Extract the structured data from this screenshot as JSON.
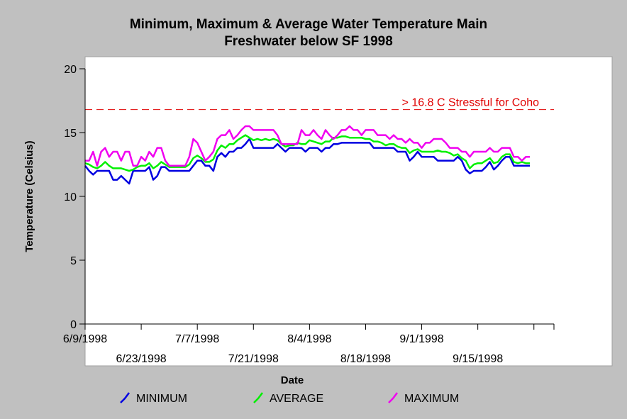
{
  "chart_data": {
    "type": "line",
    "title_line1": "Minimum, Maximum & Average Water Temperature Main",
    "title_line2": "Freshwater below SF 1998",
    "xlabel": "Date",
    "ylabel": "Temperature (Celsius)",
    "ylim": [
      0,
      20
    ],
    "yticks": [
      "0",
      "5",
      "10",
      "15",
      "20"
    ],
    "xlim": [
      0,
      117
    ],
    "x_tick_positions": [
      0,
      14,
      28,
      42,
      56,
      70,
      84,
      98,
      112
    ],
    "x_tick_labels_upper": [
      {
        "pos": 0,
        "label": "6/9/1998"
      },
      {
        "pos": 28,
        "label": "7/7/1998"
      },
      {
        "pos": 56,
        "label": "8/4/1998"
      },
      {
        "pos": 84,
        "label": "9/1/1998"
      }
    ],
    "x_tick_labels_lower": [
      {
        "pos": 14,
        "label": "6/23/1998"
      },
      {
        "pos": 42,
        "label": "7/21/1998"
      },
      {
        "pos": 70,
        "label": "8/18/1998"
      },
      {
        "pos": 98,
        "label": "9/15/1998"
      }
    ],
    "threshold": {
      "value": 16.8,
      "label": "> 16.8 C Stressful for Coho",
      "color": "#e00000"
    },
    "series": [
      {
        "name": "MINIMUM",
        "color": "#0000e0",
        "values": [
          12.4,
          12.0,
          11.7,
          12.0,
          12.0,
          12.0,
          12.0,
          11.3,
          11.3,
          11.6,
          11.3,
          11.0,
          12.0,
          12.0,
          12.0,
          12.0,
          12.3,
          11.3,
          11.6,
          12.3,
          12.3,
          12.0,
          12.0,
          12.0,
          12.0,
          12.0,
          12.0,
          12.4,
          12.8,
          12.8,
          12.4,
          12.4,
          12.0,
          13.1,
          13.4,
          13.1,
          13.5,
          13.5,
          13.8,
          13.8,
          14.1,
          14.5,
          13.8,
          13.8,
          13.8,
          13.8,
          13.8,
          13.8,
          14.1,
          13.8,
          13.5,
          13.8,
          13.8,
          13.8,
          13.8,
          13.5,
          13.8,
          13.8,
          13.8,
          13.5,
          13.8,
          13.8,
          14.1,
          14.1,
          14.2,
          14.2,
          14.2,
          14.2,
          14.2,
          14.2,
          14.2,
          14.2,
          13.8,
          13.8,
          13.8,
          13.8,
          13.8,
          13.8,
          13.5,
          13.5,
          13.5,
          12.8,
          13.1,
          13.5,
          13.1,
          13.1,
          13.1,
          13.1,
          12.8,
          12.8,
          12.8,
          12.8,
          12.8,
          13.1,
          12.8,
          12.1,
          11.8,
          12.0,
          12.0,
          12.0,
          12.3,
          12.7,
          12.1,
          12.4,
          12.8,
          13.1,
          13.1,
          12.4,
          12.4,
          12.4,
          12.4,
          12.4
        ]
      },
      {
        "name": "AVERAGE",
        "color": "#00f000",
        "values": [
          12.6,
          12.5,
          12.3,
          12.2,
          12.4,
          12.7,
          12.4,
          12.2,
          12.2,
          12.2,
          12.1,
          12.0,
          12.1,
          12.3,
          12.4,
          12.4,
          12.6,
          12.2,
          12.4,
          12.7,
          12.5,
          12.3,
          12.3,
          12.3,
          12.3,
          12.3,
          12.5,
          13.0,
          13.2,
          13.0,
          12.7,
          12.7,
          12.9,
          13.6,
          14.0,
          13.8,
          14.1,
          14.1,
          14.4,
          14.6,
          14.8,
          14.6,
          14.4,
          14.5,
          14.4,
          14.5,
          14.4,
          14.5,
          14.4,
          14.1,
          13.9,
          14.0,
          14.0,
          14.2,
          14.1,
          14.1,
          14.4,
          14.3,
          14.2,
          14.1,
          14.3,
          14.3,
          14.6,
          14.6,
          14.7,
          14.7,
          14.6,
          14.6,
          14.6,
          14.6,
          14.5,
          14.5,
          14.3,
          14.3,
          14.2,
          14.0,
          14.1,
          14.1,
          13.9,
          13.8,
          13.8,
          13.4,
          13.6,
          13.7,
          13.5,
          13.5,
          13.5,
          13.5,
          13.6,
          13.5,
          13.5,
          13.4,
          13.2,
          13.3,
          13.0,
          12.8,
          12.2,
          12.5,
          12.6,
          12.6,
          12.8,
          13.0,
          12.6,
          12.7,
          13.1,
          13.3,
          13.3,
          12.7,
          12.6,
          12.7,
          12.6,
          12.6
        ]
      },
      {
        "name": "MAXIMUM",
        "color": "#f000f0",
        "values": [
          12.8,
          12.8,
          13.5,
          12.4,
          13.5,
          13.8,
          13.1,
          13.5,
          13.5,
          12.8,
          13.5,
          13.5,
          12.4,
          12.4,
          13.1,
          12.8,
          13.5,
          13.1,
          13.8,
          13.8,
          12.8,
          12.4,
          12.4,
          12.4,
          12.4,
          12.4,
          13.1,
          14.5,
          14.2,
          13.5,
          12.8,
          13.1,
          13.5,
          14.5,
          14.8,
          14.8,
          15.2,
          14.5,
          14.8,
          15.2,
          15.5,
          15.5,
          15.2,
          15.2,
          15.2,
          15.2,
          15.2,
          15.2,
          14.8,
          14.1,
          14.1,
          14.1,
          14.1,
          14.1,
          15.2,
          14.8,
          14.8,
          15.2,
          14.8,
          14.5,
          15.2,
          14.8,
          14.5,
          14.8,
          15.2,
          15.2,
          15.5,
          15.2,
          15.2,
          14.8,
          15.2,
          15.2,
          15.2,
          14.8,
          14.8,
          14.8,
          14.5,
          14.8,
          14.5,
          14.5,
          14.2,
          14.5,
          14.2,
          14.2,
          13.8,
          14.2,
          14.2,
          14.5,
          14.5,
          14.5,
          14.2,
          13.8,
          13.8,
          13.8,
          13.5,
          13.5,
          13.1,
          13.5,
          13.5,
          13.5,
          13.5,
          13.8,
          13.5,
          13.5,
          13.8,
          13.8,
          13.8,
          13.1,
          13.1,
          12.8,
          13.1,
          13.1
        ]
      }
    ],
    "legend": {
      "placement": "bottom",
      "items": [
        "MINIMUM",
        "AVERAGE",
        "MAXIMUM"
      ]
    },
    "grid": false
  }
}
